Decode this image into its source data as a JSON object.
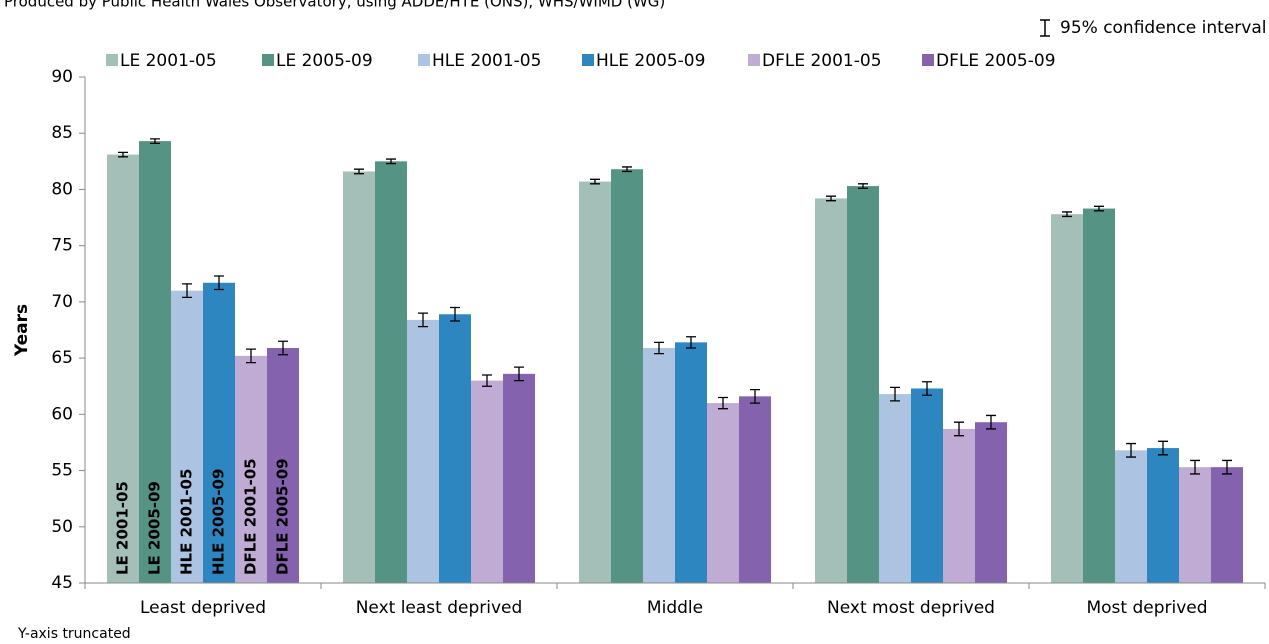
{
  "chart_data": {
    "type": "bar",
    "source": "Produced by Public Health Wales Observatory, using ADDE/HTE (ONS), WHS/WIMD (WG)",
    "error_legend": "95% confidence interval",
    "footnote": "Y-axis truncated",
    "y_label": "Years",
    "categories": [
      "Least deprived",
      "Next least deprived",
      "Middle",
      "Next most deprived",
      "Most deprived"
    ],
    "series": [
      {
        "name": "LE 2001-05",
        "color": "#a3bfb8",
        "label_color": "#2a9a6a",
        "values": [
          83.1,
          81.6,
          80.7,
          79.2,
          77.8
        ],
        "errors": [
          0.2,
          0.2,
          0.2,
          0.2,
          0.2
        ]
      },
      {
        "name": "LE 2005-09",
        "color": "#559484",
        "label_color": "#2c4e3a",
        "values": [
          84.3,
          82.5,
          81.8,
          80.3,
          78.3
        ],
        "errors": [
          0.2,
          0.2,
          0.2,
          0.2,
          0.2
        ]
      },
      {
        "name": "HLE 2001-05",
        "color": "#adc3e2",
        "label_color": "#2e86c1",
        "values": [
          71.0,
          68.4,
          65.9,
          61.8,
          56.8
        ],
        "errors": [
          0.6,
          0.6,
          0.5,
          0.6,
          0.6
        ]
      },
      {
        "name": "HLE 2005-09",
        "color": "#2e86c1",
        "label_color": "#adc3e2",
        "values": [
          71.7,
          68.9,
          66.4,
          62.3,
          57.0
        ],
        "errors": [
          0.6,
          0.6,
          0.5,
          0.6,
          0.6
        ]
      },
      {
        "name": "DFLE 2001-05",
        "color": "#bfabd4",
        "label_color": "#a98fd0",
        "values": [
          65.2,
          63.0,
          61.0,
          58.7,
          55.3
        ],
        "errors": [
          0.6,
          0.5,
          0.5,
          0.6,
          0.6
        ]
      },
      {
        "name": "DFLE 2005-09",
        "color": "#8462ad",
        "label_color": "#4a3070",
        "values": [
          65.9,
          63.6,
          61.6,
          59.3,
          55.3
        ],
        "errors": [
          0.6,
          0.6,
          0.6,
          0.6,
          0.6
        ]
      }
    ],
    "ylim": [
      45,
      90
    ],
    "yticks": [
      45,
      50,
      55,
      60,
      65,
      70,
      75,
      80,
      85,
      90
    ],
    "grid": false
  }
}
